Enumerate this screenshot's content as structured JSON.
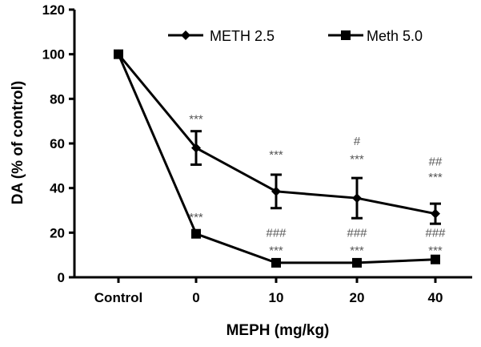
{
  "chart_data": {
    "type": "line",
    "title": "",
    "xlabel": "MEPH (mg/kg)",
    "ylabel": "DA (% of control)",
    "categories": [
      "Control",
      "0",
      "10",
      "20",
      "40"
    ],
    "ylim": [
      0,
      120
    ],
    "yticks": [
      0,
      20,
      40,
      60,
      80,
      100,
      120
    ],
    "grid": false,
    "legend_position": "top-right",
    "series": [
      {
        "name": "METH 2.5",
        "marker": "diamond",
        "values": [
          100,
          58,
          38.5,
          35.5,
          28.5
        ],
        "errors": [
          0,
          7.5,
          7.5,
          9,
          4.5
        ]
      },
      {
        "name": "Meth 5.0",
        "marker": "square",
        "values": [
          100,
          19.5,
          6.5,
          6.5,
          8
        ],
        "errors": [
          0,
          0,
          0,
          0,
          0
        ]
      }
    ],
    "annotations": [
      {
        "category": "0",
        "y": 71,
        "text": "***"
      },
      {
        "category": "0",
        "y": 27,
        "text": "***"
      },
      {
        "category": "10",
        "y": 55,
        "text": "***"
      },
      {
        "category": "10",
        "y": 20,
        "text": "###"
      },
      {
        "category": "10",
        "y": 12,
        "text": "***"
      },
      {
        "category": "20",
        "y": 61,
        "text": "#"
      },
      {
        "category": "20",
        "y": 53,
        "text": "***"
      },
      {
        "category": "20",
        "y": 20,
        "text": "###"
      },
      {
        "category": "20",
        "y": 12,
        "text": "***"
      },
      {
        "category": "40",
        "y": 52,
        "text": "##"
      },
      {
        "category": "40",
        "y": 45,
        "text": "***"
      },
      {
        "category": "40",
        "y": 20,
        "text": "###"
      },
      {
        "category": "40",
        "y": 12,
        "text": "***"
      }
    ]
  }
}
